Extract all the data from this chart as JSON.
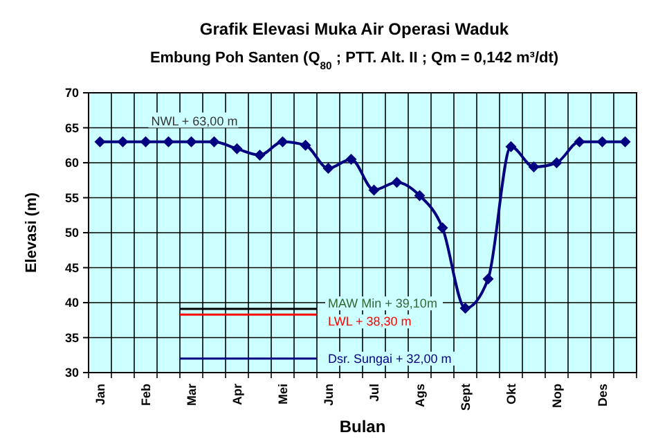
{
  "chart_data": {
    "type": "line",
    "title": "Grafik Elevasi Muka Air Operasi Waduk",
    "subtitle": "Embung Poh Santen (Q$_{80}$ ; PTT. Alt. II ; Qm = 0,142 m³/dt)",
    "xlabel": "Bulan",
    "ylabel": "Elevasi (m)",
    "categories": [
      "Jan",
      null,
      "Feb",
      null,
      "Mar",
      null,
      "Apr",
      null,
      "Mei",
      null,
      "Jun",
      null,
      "Jul",
      null,
      "Ags",
      null,
      "Sept",
      null,
      "Okt",
      null,
      "Nop",
      null,
      "Des",
      null
    ],
    "series": [
      {
        "color": "#000080",
        "values": [
          63,
          63,
          63,
          63,
          63,
          63,
          62.0,
          61.1,
          63,
          62.5,
          59.2,
          60.5,
          56.1,
          57.2,
          55.3,
          50.7,
          39.2,
          43.4,
          62.3,
          59.4,
          60.0,
          63,
          63,
          63
        ]
      }
    ],
    "ylim": [
      30,
      70
    ],
    "yticks": [
      30,
      35,
      40,
      45,
      50,
      55,
      60,
      65,
      70
    ],
    "grid": true,
    "marker": "diamond",
    "line_style": "solid",
    "ref_lines": [
      {
        "axis": "y",
        "value": 39.1,
        "label": "MAW Min  + 39,10m",
        "color": "#000000"
      },
      {
        "axis": "y",
        "value": 38.3,
        "label": "LWL + 38,30 m",
        "color": "#ff0000"
      },
      {
        "axis": "y",
        "value": 32.0,
        "label": "Dsr. Sungai + 32,00 m",
        "color": "#000080"
      }
    ],
    "annotations": [
      "NWL + 63,00 m"
    ]
  }
}
